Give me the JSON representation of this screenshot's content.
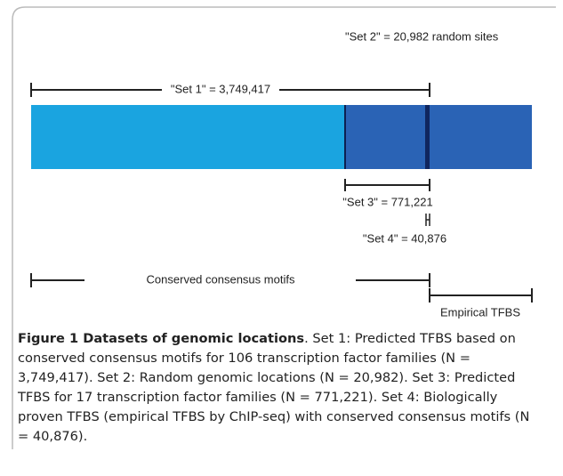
{
  "figure": {
    "set2": "\"Set 2\" = 20,982 random sites",
    "set1": "\"Set 1\" = 3,749,417",
    "set3": "\"Set 3\" = 771,221",
    "set4": "\"Set 4\" = 40,876",
    "conserved": "Conserved consensus motifs",
    "empirical": "Empirical TFBS"
  },
  "caption": {
    "title": "Figure 1 Datasets of genomic locations",
    "text": ". Set 1: Predicted TFBS based on conserved consensus motifs for 106 transcription factor families (N = 3,749,417). Set 2: Random genomic locations (N = 20,982). Set 3: Predicted TFBS for 17 transcription factor families (N = 771,221). Set 4: Biologically proven TFBS (empirical TFBS by ChIP-seq) with conserved consensus motifs (N = 40,876)."
  }
}
